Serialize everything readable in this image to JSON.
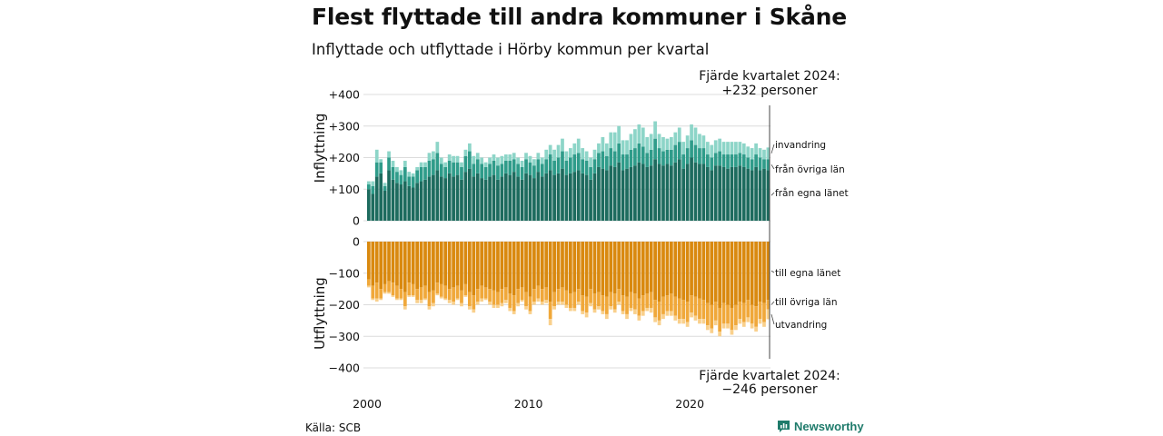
{
  "title": "Flest flyttade till andra kommuner i Skåne",
  "subtitle": "Inflyttade och utflyttade i Hörby kommun per kvartal",
  "source": "Källa: SCB",
  "brand": "Newsworthy",
  "annotations": {
    "top_line1": "Fjärde kvartalet 2024:",
    "top_line2": "+232 personer",
    "bottom_line1": "Fjärde kvartalet 2024:",
    "bottom_line2": "−246 personer"
  },
  "chart_data": {
    "type": "bar",
    "x_start": 2000,
    "x_ticks": [
      "2000",
      "2010",
      "2020"
    ],
    "top_panel": {
      "ylabel": "Inflyttning",
      "ylim": [
        0,
        400
      ],
      "y_ticks": [
        "0",
        "+100",
        "+200",
        "+300",
        "+400"
      ],
      "series": [
        {
          "name": "från egna länet",
          "color": "#1d6b5e"
        },
        {
          "name": "från övriga län",
          "color": "#2f9c8a"
        },
        {
          "name": "invandring",
          "color": "#8dd5c8"
        }
      ],
      "values": {
        "från egna länet": [
          100,
          85,
          140,
          150,
          95,
          160,
          130,
          120,
          115,
          125,
          110,
          105,
          120,
          125,
          130,
          140,
          145,
          160,
          140,
          135,
          150,
          140,
          145,
          130,
          155,
          165,
          140,
          150,
          135,
          130,
          140,
          145,
          130,
          140,
          150,
          145,
          155,
          140,
          130,
          150,
          145,
          135,
          155,
          140,
          150,
          160,
          145,
          150,
          165,
          145,
          150,
          155,
          160,
          150,
          145,
          130,
          150,
          170,
          165,
          160,
          175,
          170,
          185,
          160,
          165,
          170,
          175,
          185,
          180,
          170,
          175,
          195,
          180,
          175,
          180,
          175,
          185,
          195,
          165,
          180,
          200,
          185,
          180,
          180,
          170,
          160,
          175,
          175,
          170,
          165,
          170,
          170,
          175,
          170,
          165,
          160,
          170,
          160,
          165,
          160
        ],
        "från övriga län": [
          15,
          25,
          45,
          35,
          15,
          40,
          40,
          35,
          30,
          45,
          30,
          35,
          40,
          45,
          40,
          50,
          50,
          55,
          40,
          35,
          40,
          45,
          40,
          40,
          50,
          55,
          40,
          45,
          45,
          40,
          40,
          45,
          45,
          40,
          40,
          45,
          40,
          40,
          40,
          45,
          40,
          40,
          40,
          40,
          45,
          50,
          45,
          50,
          55,
          45,
          50,
          55,
          55,
          45,
          45,
          40,
          45,
          45,
          55,
          45,
          55,
          50,
          60,
          50,
          45,
          55,
          55,
          60,
          55,
          45,
          50,
          65,
          50,
          45,
          45,
          50,
          55,
          55,
          45,
          50,
          55,
          55,
          50,
          50,
          40,
          40,
          40,
          45,
          40,
          45,
          40,
          40,
          40,
          40,
          35,
          35,
          40,
          40,
          30,
          35
        ],
        "invandring": [
          10,
          15,
          40,
          10,
          10,
          20,
          20,
          15,
          15,
          20,
          15,
          10,
          10,
          15,
          15,
          25,
          25,
          35,
          20,
          15,
          20,
          20,
          20,
          15,
          20,
          25,
          25,
          20,
          20,
          15,
          20,
          20,
          25,
          25,
          20,
          20,
          20,
          20,
          20,
          20,
          20,
          20,
          20,
          20,
          30,
          30,
          35,
          40,
          40,
          30,
          30,
          35,
          45,
          35,
          30,
          30,
          30,
          30,
          45,
          40,
          50,
          60,
          55,
          45,
          45,
          50,
          60,
          60,
          60,
          50,
          50,
          55,
          45,
          45,
          35,
          40,
          40,
          45,
          40,
          40,
          50,
          55,
          45,
          40,
          40,
          40,
          40,
          40,
          40,
          40,
          40,
          40,
          35,
          35,
          35,
          35,
          35,
          30,
          30,
          37
        ]
      }
    },
    "bottom_panel": {
      "ylabel": "Utflyttning",
      "ylim": [
        -400,
        0
      ],
      "y_ticks": [
        "0",
        "−100",
        "−200",
        "−300",
        "−400"
      ],
      "series": [
        {
          "name": "till egna länet",
          "color": "#d9890f"
        },
        {
          "name": "till övriga län",
          "color": "#f0a83a"
        },
        {
          "name": "utvandring",
          "color": "#f9d08c"
        }
      ],
      "values": {
        "till egna länet": [
          -120,
          -140,
          -130,
          -150,
          -135,
          -125,
          -130,
          -140,
          -150,
          -160,
          -130,
          -135,
          -150,
          -145,
          -140,
          -160,
          -155,
          -130,
          -135,
          -140,
          -150,
          -145,
          -140,
          -155,
          -135,
          -160,
          -170,
          -150,
          -140,
          -145,
          -150,
          -155,
          -160,
          -150,
          -145,
          -165,
          -170,
          -150,
          -145,
          -160,
          -175,
          -150,
          -140,
          -150,
          -145,
          -190,
          -160,
          -150,
          -145,
          -155,
          -165,
          -160,
          -150,
          -170,
          -175,
          -150,
          -165,
          -160,
          -170,
          -175,
          -160,
          -165,
          -150,
          -170,
          -175,
          -160,
          -165,
          -180,
          -170,
          -165,
          -160,
          -185,
          -190,
          -175,
          -170,
          -165,
          -175,
          -180,
          -185,
          -190,
          -170,
          -175,
          -180,
          -185,
          -195,
          -200,
          -190,
          -210,
          -195,
          -200,
          -210,
          -200,
          -190,
          -195,
          -185,
          -200,
          -205,
          -190,
          -195,
          -185
        ],
        "till övriga län": [
          -20,
          -40,
          -50,
          -30,
          -25,
          -35,
          -40,
          -40,
          -30,
          -45,
          -40,
          -35,
          -35,
          -40,
          -40,
          -45,
          -40,
          -35,
          -40,
          -40,
          -35,
          -45,
          -40,
          -40,
          -35,
          -45,
          -45,
          -40,
          -40,
          -35,
          -40,
          -45,
          -40,
          -45,
          -40,
          -45,
          -50,
          -45,
          -40,
          -45,
          -45,
          -40,
          -40,
          -40,
          -40,
          -55,
          -45,
          -40,
          -45,
          -45,
          -45,
          -50,
          -40,
          -50,
          -50,
          -45,
          -50,
          -45,
          -50,
          -55,
          -45,
          -50,
          -40,
          -50,
          -55,
          -50,
          -50,
          -55,
          -50,
          -45,
          -50,
          -55,
          -60,
          -55,
          -50,
          -55,
          -60,
          -65,
          -60,
          -65,
          -55,
          -60,
          -65,
          -60,
          -70,
          -75,
          -60,
          -75,
          -65,
          -60,
          -70,
          -65,
          -55,
          -60,
          -55,
          -60,
          -65,
          -55,
          -60,
          -30
        ],
        "utvandring": [
          -5,
          -5,
          -10,
          -5,
          -5,
          -5,
          -5,
          -5,
          -5,
          -10,
          -5,
          -5,
          -10,
          -10,
          -5,
          -10,
          -10,
          -5,
          -5,
          -5,
          -10,
          -10,
          -5,
          -10,
          -5,
          -10,
          -10,
          -10,
          -10,
          -5,
          -10,
          -10,
          -10,
          -10,
          -10,
          -10,
          -10,
          -10,
          -5,
          -10,
          -10,
          -10,
          -10,
          -10,
          -10,
          -20,
          -10,
          -10,
          -10,
          -10,
          -10,
          -10,
          -10,
          -10,
          -15,
          -10,
          -10,
          -10,
          -10,
          -15,
          -10,
          -10,
          -10,
          -10,
          -15,
          -10,
          -15,
          -15,
          -15,
          -10,
          -15,
          -15,
          -15,
          -15,
          -15,
          -15,
          -15,
          -15,
          -15,
          -15,
          -15,
          -15,
          -15,
          -15,
          -15,
          -15,
          -15,
          -15,
          -15,
          -15,
          -15,
          -15,
          -15,
          -15,
          -15,
          -15,
          -15,
          -15,
          -15,
          -31
        ]
      }
    }
  }
}
